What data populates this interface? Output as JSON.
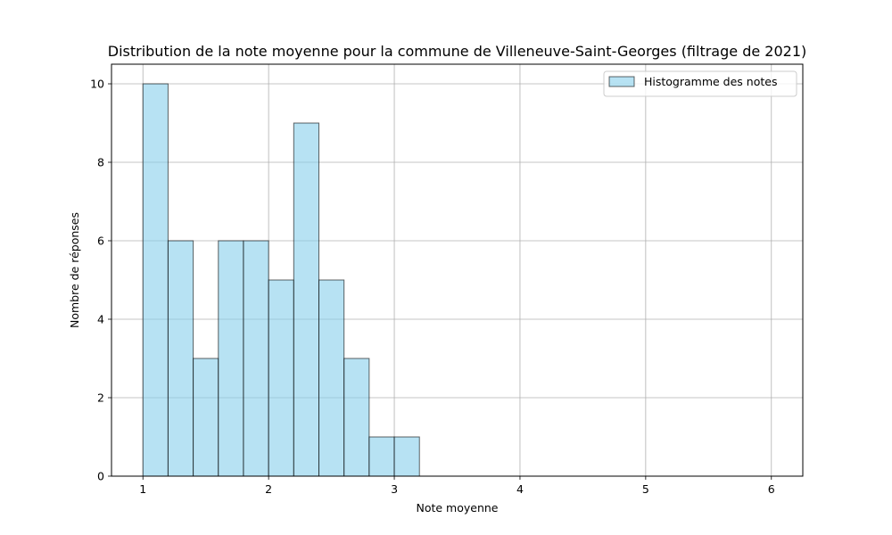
{
  "chart_data": {
    "type": "bar",
    "title": "Distribution de la note moyenne pour la commune de Villeneuve-Saint-Georges (filtrage de 2021)",
    "xlabel": "Note moyenne",
    "ylabel": "Nombre de réponses",
    "xlim": [
      0.75,
      6.25
    ],
    "ylim": [
      0,
      10.5
    ],
    "xticks": [
      1,
      2,
      3,
      4,
      5,
      6
    ],
    "yticks": [
      0,
      2,
      4,
      6,
      8,
      10
    ],
    "grid": true,
    "legend_position": "top-right",
    "series": [
      {
        "name": "Histogramme des notes",
        "color": "#87ceeb",
        "edge_color": "#000000",
        "bin_edges": [
          1.0,
          1.2,
          1.4,
          1.6,
          1.8,
          2.0,
          2.2,
          2.4,
          2.6,
          2.8,
          3.0,
          3.2,
          3.4,
          3.6,
          3.8,
          4.0,
          4.2,
          4.4,
          4.6,
          4.8,
          5.0,
          5.2,
          5.4,
          5.6,
          5.8,
          6.0
        ],
        "values": [
          10,
          6,
          3,
          6,
          6,
          5,
          9,
          5,
          3,
          1,
          1,
          0,
          0,
          0,
          0,
          0,
          0,
          0,
          0,
          0,
          0,
          0,
          0,
          0,
          0
        ]
      }
    ]
  }
}
